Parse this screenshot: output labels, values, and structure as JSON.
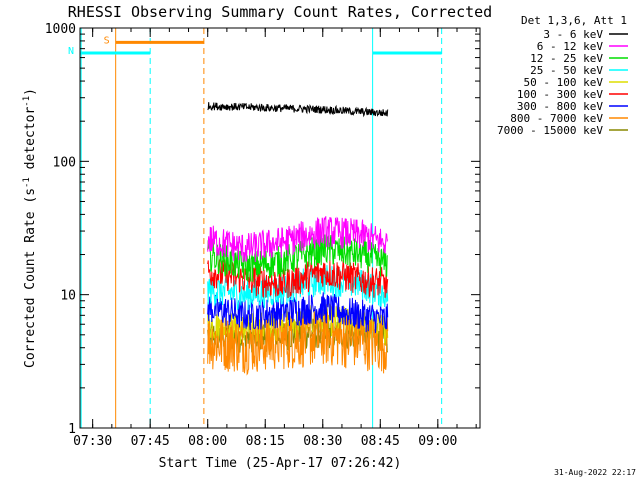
{
  "chart_data": {
    "type": "line",
    "title": "RHESSI Observing Summary Count Rates, Corrected",
    "xlabel": "Start Time (25-Apr-17 07:26:42)",
    "ylabel_main": "Corrected Count Rate (s",
    "ylabel_sup1": "-1",
    "ylabel_mid": " detector",
    "ylabel_sup2": "-1",
    "ylabel_end": ")",
    "yscale": "log",
    "ylim": [
      1,
      1000
    ],
    "xlim": [
      "07:26:42",
      "09:11:00"
    ],
    "xticks": [
      "07:30",
      "07:45",
      "08:00",
      "08:15",
      "08:30",
      "08:45",
      "09:00"
    ],
    "yticks": [
      "1",
      "10",
      "100",
      "1000"
    ],
    "footer_date": "31-Aug-2022 22:17",
    "legend": {
      "title": "Det 1,3,6, Att 1",
      "entries": [
        {
          "label": "3 - 6 keV",
          "color": "#000000"
        },
        {
          "label": "6 - 12 keV",
          "color": "#ff00ff"
        },
        {
          "label": "12 - 25 keV",
          "color": "#00dd00"
        },
        {
          "label": "25 - 50 keV",
          "color": "#00ffff"
        },
        {
          "label": "50 - 100 keV",
          "color": "#dddd00"
        },
        {
          "label": "100 - 300 keV",
          "color": "#ff0000"
        },
        {
          "label": "300 - 800 keV",
          "color": "#0000ff"
        },
        {
          "label": "800 - 7000 keV",
          "color": "#ff8800"
        },
        {
          "label": "7000 - 15000 keV",
          "color": "#888800"
        }
      ]
    },
    "intervals": [
      {
        "label": "S",
        "color": "#ff8800",
        "start": "07:36",
        "end": "07:59",
        "y": 780
      },
      {
        "label": "N",
        "color": "#00ffff",
        "start": "07:26:42",
        "end": "07:45",
        "y": 650
      },
      {
        "label": "",
        "color": "#00ffff",
        "start": "08:43",
        "end": "09:01",
        "y": 650
      }
    ],
    "vlines": [
      {
        "time": "07:27",
        "color": "#00ffff",
        "style": "solid"
      },
      {
        "time": "07:36",
        "color": "#ff8800",
        "style": "solid"
      },
      {
        "time": "07:45",
        "color": "#00ffff",
        "style": "dashed"
      },
      {
        "time": "07:59",
        "color": "#ff8800",
        "style": "dashed"
      },
      {
        "time": "08:43",
        "color": "#00ffff",
        "style": "solid"
      },
      {
        "time": "09:01",
        "color": "#00ffff",
        "style": "dashed"
      }
    ],
    "series": [
      {
        "name": "3 - 6 keV",
        "color": "#000000",
        "start": "08:00",
        "end": "08:47",
        "times": [
          "08:00",
          "08:10",
          "08:20",
          "08:30",
          "08:40",
          "08:47"
        ],
        "values": [
          260,
          255,
          250,
          245,
          235,
          230
        ]
      },
      {
        "name": "6 - 12 keV",
        "color": "#ff00ff",
        "start": "08:00",
        "end": "08:47",
        "times": [
          "08:00",
          "08:10",
          "08:20",
          "08:30",
          "08:40",
          "08:47"
        ],
        "values": [
          26,
          22,
          25,
          30,
          28,
          24
        ]
      },
      {
        "name": "12 - 25 keV",
        "color": "#00dd00",
        "start": "08:00",
        "end": "08:47",
        "times": [
          "08:00",
          "08:10",
          "08:20",
          "08:30",
          "08:40",
          "08:47"
        ],
        "values": [
          20,
          16,
          18,
          22,
          20,
          17
        ]
      },
      {
        "name": "25 - 50 keV",
        "color": "#00ffff",
        "start": "08:00",
        "end": "08:47",
        "times": [
          "08:00",
          "08:10",
          "08:20",
          "08:30",
          "08:40",
          "08:47"
        ],
        "values": [
          11,
          10,
          11,
          13,
          12,
          10
        ]
      },
      {
        "name": "50 - 100 keV",
        "color": "#dddd00",
        "start": "08:00",
        "end": "08:47",
        "times": [
          "08:00",
          "08:10",
          "08:20",
          "08:30",
          "08:40",
          "08:47"
        ],
        "values": [
          6,
          5.5,
          6,
          6.5,
          6,
          5.5
        ]
      },
      {
        "name": "100 - 300 keV",
        "color": "#ff0000",
        "start": "08:00",
        "end": "08:47",
        "times": [
          "08:00",
          "08:10",
          "08:20",
          "08:30",
          "08:40",
          "08:47"
        ],
        "values": [
          15,
          13,
          12,
          15,
          13,
          12
        ]
      },
      {
        "name": "300 - 800 keV",
        "color": "#0000ff",
        "start": "08:00",
        "end": "08:47",
        "times": [
          "08:00",
          "08:10",
          "08:20",
          "08:30",
          "08:40",
          "08:47"
        ],
        "values": [
          8,
          7,
          7.5,
          8,
          7,
          6.5
        ]
      },
      {
        "name": "800 - 7000 keV",
        "color": "#ff8800",
        "start": "08:00",
        "end": "08:47",
        "times": [
          "08:00",
          "08:10",
          "08:20",
          "08:30",
          "08:40",
          "08:47"
        ],
        "values": [
          4.5,
          4.2,
          4.5,
          4.8,
          4.5,
          4.2
        ]
      },
      {
        "name": "7000 - 15000 keV",
        "color": "#888800",
        "start": "08:00",
        "end": "08:47",
        "times": [
          "08:00",
          "08:10",
          "08:20",
          "08:30",
          "08:40",
          "08:47"
        ],
        "values": [
          5,
          4.8,
          5,
          5.2,
          5,
          4.8
        ]
      }
    ]
  }
}
